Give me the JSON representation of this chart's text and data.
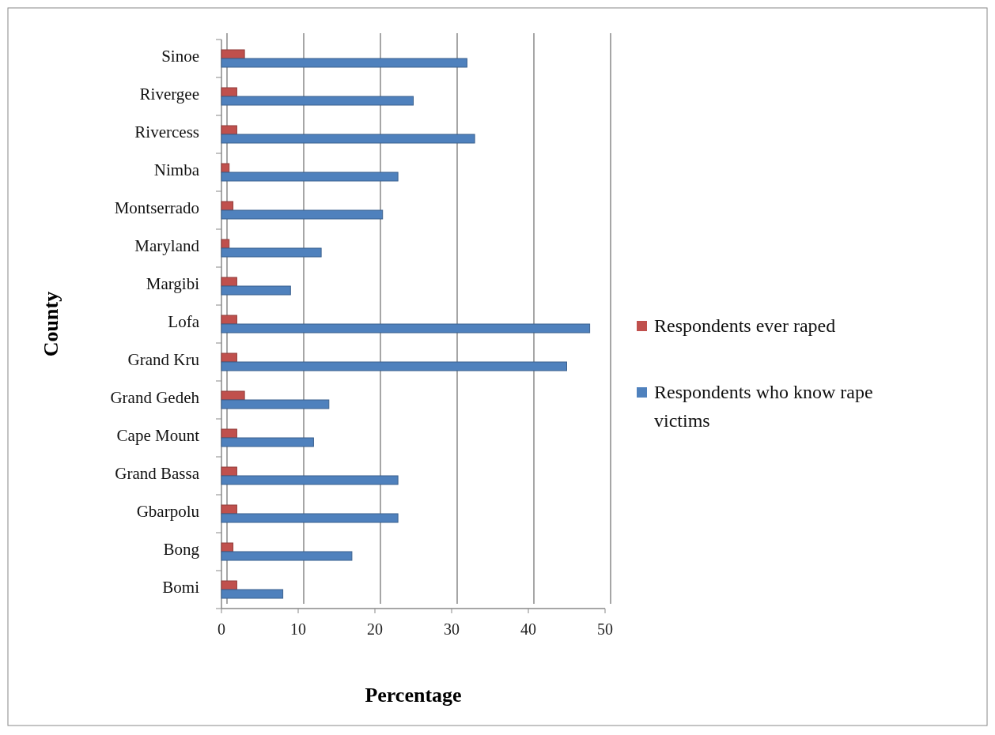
{
  "chart_data": {
    "type": "bar",
    "orientation": "horizontal",
    "xlabel": "Percentage",
    "ylabel": "County",
    "categories": [
      "Sinoe",
      "Rivergee",
      "Rivercess",
      "Nimba",
      "Montserrado",
      "Maryland",
      "Margibi",
      "Lofa",
      "Grand Kru",
      "Grand Gedeh",
      "Cape Mount",
      "Grand Bassa",
      "Gbarpolu",
      "Bong",
      "Bomi"
    ],
    "series": [
      {
        "name": "Respondents ever raped",
        "color": "#c0504d",
        "values": [
          3,
          2,
          2,
          1,
          1.5,
          1,
          2,
          2,
          2,
          3,
          2,
          2,
          2,
          1.5,
          2
        ]
      },
      {
        "name": "Respondents who know rape victims",
        "color": "#4f81bd",
        "values": [
          32,
          25,
          33,
          23,
          21,
          13,
          9,
          48,
          45,
          14,
          12,
          23,
          23,
          17,
          8
        ]
      }
    ],
    "xlim": [
      0,
      50
    ],
    "xticks": [
      0,
      10,
      20,
      30,
      40,
      50
    ],
    "grid": "x",
    "legend": "right"
  }
}
